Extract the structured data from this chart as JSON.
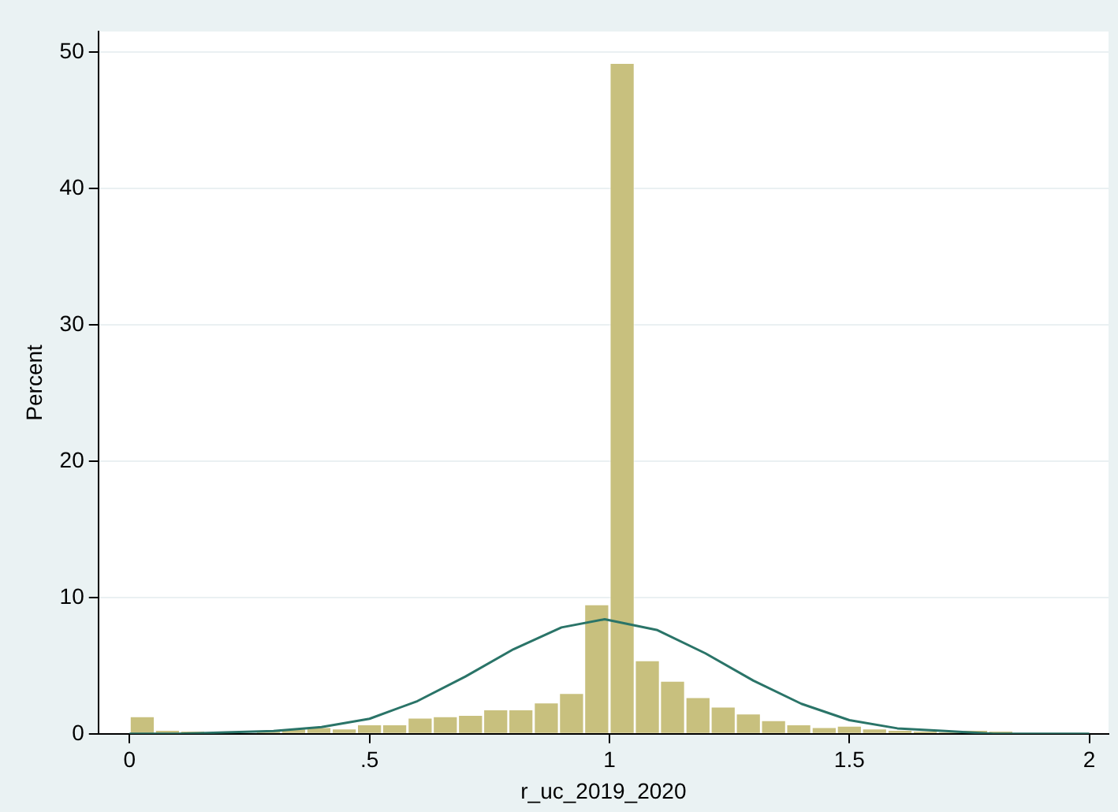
{
  "chart_data": {
    "type": "histogram",
    "xlabel": "r_uc_2019_2020",
    "ylabel": "Percent",
    "bins": [
      0,
      0.053,
      0.105,
      0.158,
      0.211,
      0.263,
      0.316,
      0.368,
      0.421,
      0.474,
      0.526,
      0.579,
      0.632,
      0.684,
      0.737,
      0.789,
      0.842,
      0.895,
      0.947,
      1,
      1.053,
      1.105,
      1.158,
      1.211,
      1.263,
      1.316,
      1.368,
      1.421,
      1.474,
      1.526,
      1.579,
      1.632,
      1.684,
      1.737,
      1.789,
      1.842
    ],
    "series": [
      {
        "color": "#c8c07e",
        "values": [
          1.3,
          0.3,
          0.2,
          0.1,
          null,
          0.2,
          0.4,
          0.5,
          0.4,
          0.7,
          0.7,
          1.2,
          1.3,
          1.4,
          1.8,
          1.8,
          2.3,
          3.0,
          9.5,
          49.2,
          5.4,
          3.9,
          2.7,
          2.0,
          1.5,
          1.0,
          0.7,
          0.5,
          0.6,
          0.4,
          0.3,
          0.2,
          0.1,
          0.3,
          0.2
        ]
      },
      {
        "type": "line",
        "color": "#2a7468",
        "x": [
          0,
          0.1,
          0.2,
          0.3,
          0.4,
          0.5,
          0.6,
          0.7,
          0.8,
          0.9,
          0.99,
          1.1,
          1.2,
          1.3,
          1.4,
          1.5,
          1.6,
          1.7,
          1.8,
          1.9,
          2
        ],
        "values": [
          0,
          0,
          0.1,
          0.2,
          0.5,
          1.1,
          2.4,
          4.2,
          6.2,
          7.8,
          8.4,
          7.6,
          5.9,
          3.9,
          2.2,
          1.0,
          0.4,
          0.2,
          0,
          0,
          0
        ]
      }
    ],
    "xlim": [
      -0.065,
      2.04
    ],
    "ylim": [
      0,
      51.5
    ],
    "xticks": [
      {
        "value": 0,
        "label": "0"
      },
      {
        "value": 0.5,
        "label": ".5"
      },
      {
        "value": 1,
        "label": "1"
      },
      {
        "value": 1.5,
        "label": "1.5"
      },
      {
        "value": 2,
        "label": "2"
      }
    ],
    "yticks": [
      0,
      10,
      20,
      30,
      40,
      50
    ],
    "grid": "y",
    "legend": false
  }
}
